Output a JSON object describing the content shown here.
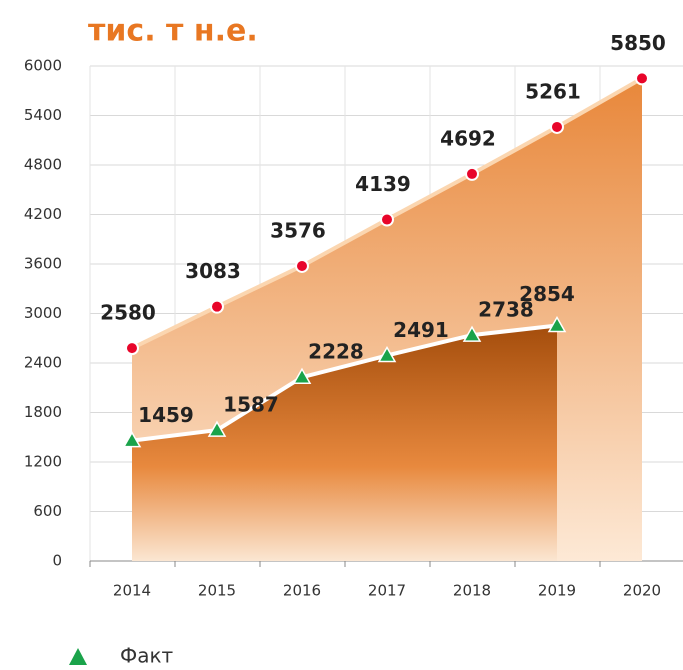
{
  "chart_data": {
    "type": "area",
    "title": "тис. т н.е.",
    "title_color": "#e87722",
    "categories": [
      "2014",
      "2015",
      "2016",
      "2017",
      "2018",
      "2019",
      "2020"
    ],
    "series": [
      {
        "color": "#e8052a",
        "values": [
          2580,
          3083,
          3576,
          4139,
          4692,
          5261,
          5850
        ]
      },
      {
        "name": "Факт",
        "color": "#1aa34a",
        "values": [
          1459,
          1587,
          2228,
          2491,
          2738,
          2854,
          null
        ]
      }
    ],
    "ylim": [
      0,
      6000
    ],
    "yticks": [
      0,
      600,
      1200,
      1800,
      2400,
      3000,
      3600,
      4200,
      4800,
      5400,
      6000
    ],
    "grid": true,
    "legend": "bottom-left"
  }
}
